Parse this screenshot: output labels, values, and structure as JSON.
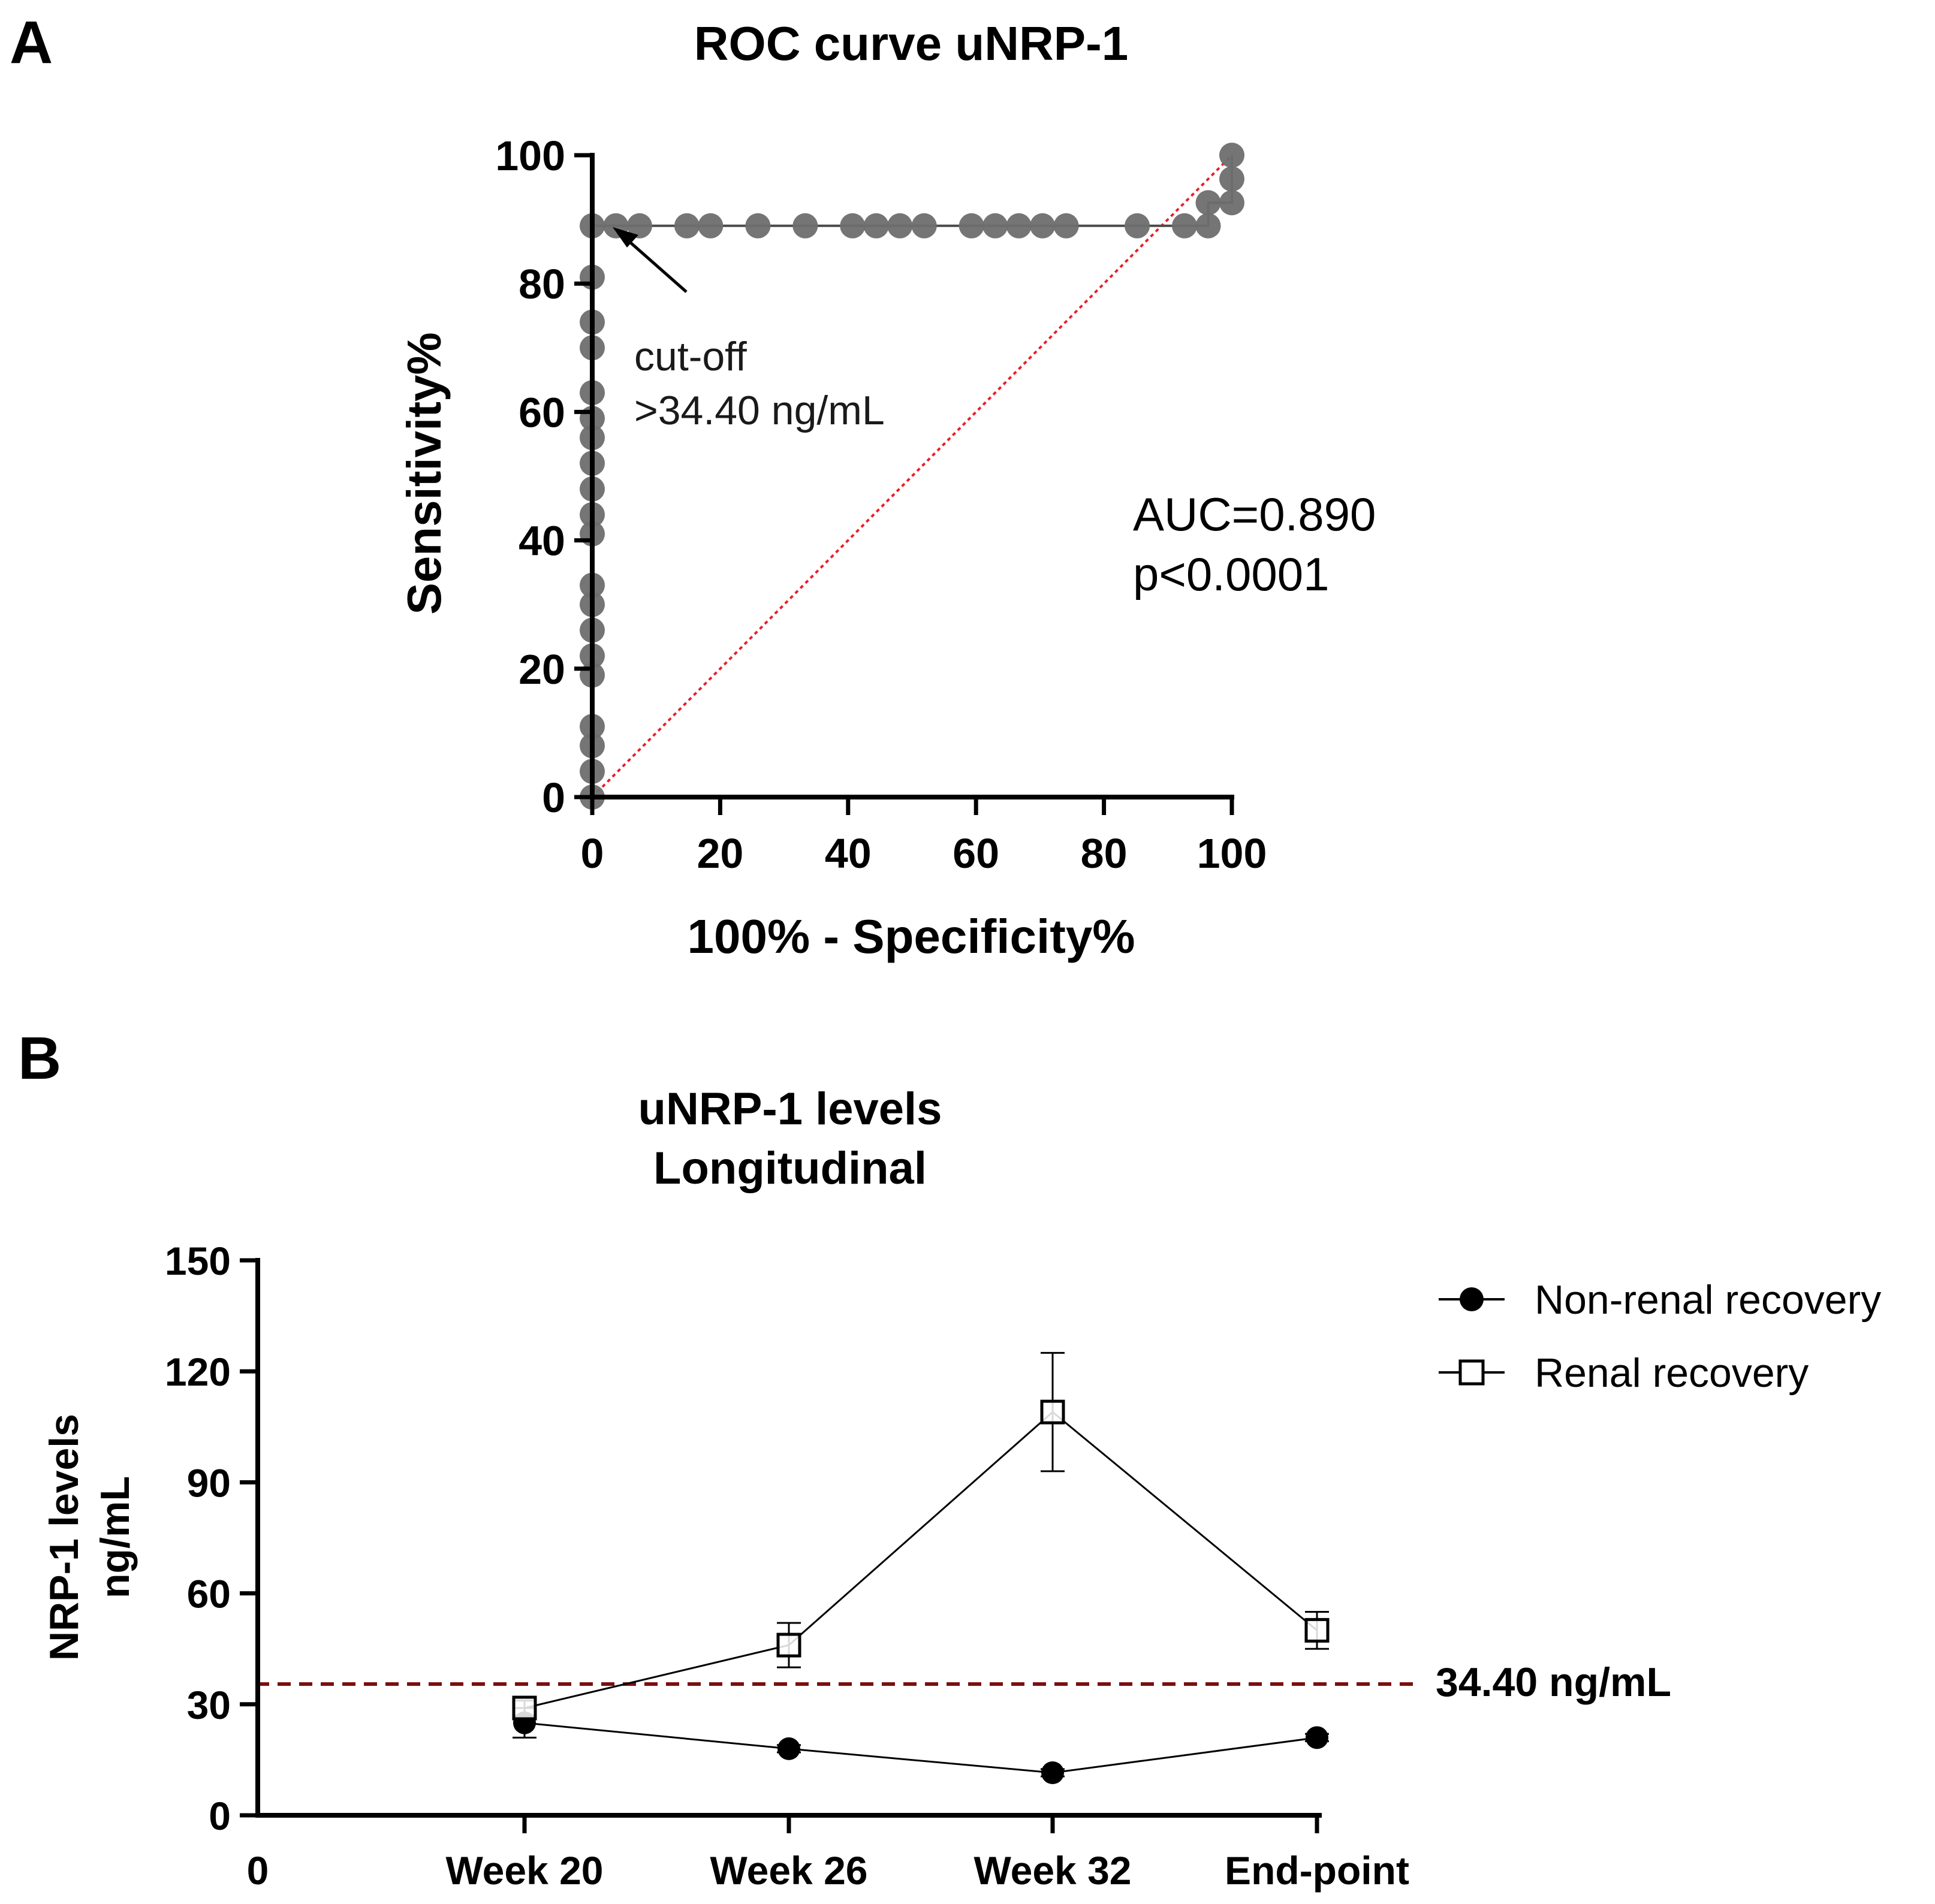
{
  "chart_data": [
    {
      "type": "scatter",
      "panel_letter": "A",
      "title": "ROC curve uNRP-1",
      "xlabel": "100% - Specificity%",
      "ylabel": "Sensitivity%",
      "xlim": [
        0,
        100
      ],
      "ylim": [
        0,
        100
      ],
      "xticks": [
        "0",
        "20",
        "40",
        "60",
        "80",
        "100"
      ],
      "yticks": [
        "0",
        "20",
        "40",
        "60",
        "80",
        "100"
      ],
      "grid": false,
      "series": [
        {
          "name": "ROC",
          "color": "#6e6e6e",
          "points": [
            [
              0,
              0
            ],
            [
              0,
              4
            ],
            [
              0,
              8
            ],
            [
              0,
              11
            ],
            [
              0,
              19
            ],
            [
              0,
              22
            ],
            [
              0,
              26
            ],
            [
              0,
              30
            ],
            [
              0,
              33
            ],
            [
              0,
              41
            ],
            [
              0,
              44
            ],
            [
              0,
              48
            ],
            [
              0,
              52
            ],
            [
              0,
              56
            ],
            [
              0,
              59
            ],
            [
              0,
              63
            ],
            [
              0,
              70
            ],
            [
              0,
              74
            ],
            [
              0,
              81
            ],
            [
              0,
              89
            ],
            [
              3.7,
              89
            ],
            [
              7.4,
              89
            ],
            [
              14.8,
              89
            ],
            [
              18.5,
              89
            ],
            [
              25.9,
              89
            ],
            [
              33.3,
              89
            ],
            [
              40.7,
              89
            ],
            [
              44.4,
              89
            ],
            [
              48.1,
              89
            ],
            [
              51.9,
              89
            ],
            [
              59.3,
              89
            ],
            [
              63,
              89
            ],
            [
              66.7,
              89
            ],
            [
              70.4,
              89
            ],
            [
              74.1,
              89
            ],
            [
              85.2,
              89
            ],
            [
              92.6,
              89
            ],
            [
              96.3,
              89
            ],
            [
              96.3,
              92.6
            ],
            [
              100,
              92.6
            ],
            [
              100,
              96.3
            ],
            [
              100,
              100
            ]
          ]
        },
        {
          "name": "reference line",
          "color": "#e8202a",
          "points": [
            [
              0,
              0
            ],
            [
              100,
              100
            ]
          ]
        }
      ],
      "annotations": {
        "cutoff_line1": "cut-off",
        "cutoff_line2": ">34.40 ng/mL",
        "cutoff_point": [
          0,
          89
        ],
        "auc": "AUC=0.890",
        "p_value": "p<0.0001"
      }
    },
    {
      "type": "line",
      "panel_letter": "B",
      "title_line1": "uNRP-1 levels",
      "title_line2": "Longitudinal",
      "ylabel_line1": "NRP-1 levels",
      "ylabel_line2": "ng/mL",
      "x_origin_label": "0",
      "categories": [
        "Week 20",
        "Week 26",
        "Week 32",
        "End-point"
      ],
      "ylim": [
        0,
        150
      ],
      "yticks": [
        "0",
        "30",
        "60",
        "90",
        "120",
        "150"
      ],
      "grid": false,
      "legend_position": "top-right",
      "series": [
        {
          "name": "Non-renal recovery",
          "marker": "filled-circle",
          "color": "#000000",
          "values": [
            25,
            18,
            11.5,
            21
          ],
          "errors": [
            4,
            1,
            1,
            1
          ]
        },
        {
          "name": "Renal recovery",
          "marker": "open-square",
          "color": "#000000",
          "values": [
            29,
            46,
            109,
            50
          ],
          "errors": [
            2,
            6,
            16,
            5
          ]
        }
      ],
      "threshold": {
        "value": 34.4,
        "label": "34.40 ng/mL",
        "color": "#7b0f0f"
      }
    }
  ]
}
